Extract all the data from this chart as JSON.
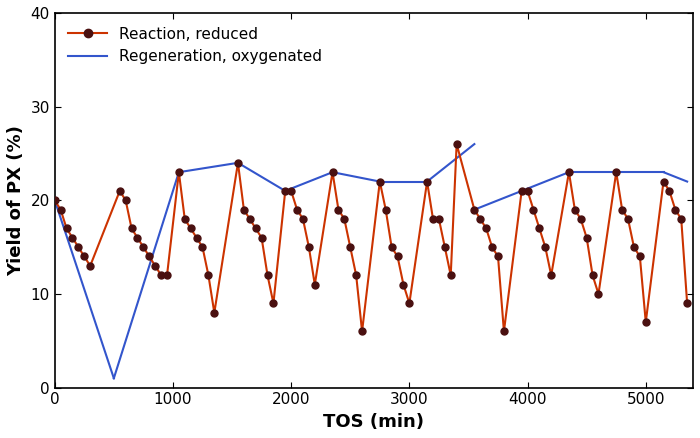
{
  "title": "",
  "xlabel": "TOS (min)",
  "ylabel": "Yield of PX (%)",
  "ylim": [
    0,
    40
  ],
  "xlim": [
    0,
    5400
  ],
  "xticks": [
    0,
    1000,
    2000,
    3000,
    4000,
    5000
  ],
  "yticks": [
    0,
    10,
    20,
    30,
    40
  ],
  "reaction_color": "#cc3300",
  "regeneration_color": "#3355cc",
  "marker_color": "#4a1010",
  "legend_reaction": "Reaction, reduced",
  "legend_regeneration": "Regeneration, oxygenated",
  "reaction_x": [
    0,
    50,
    100,
    150,
    200,
    250,
    300,
    550,
    600,
    650,
    700,
    750,
    800,
    850,
    900,
    950,
    1050,
    1100,
    1150,
    1200,
    1250,
    1300,
    1350,
    1550,
    1600,
    1650,
    1700,
    1750,
    1800,
    1850,
    1950,
    2000,
    2050,
    2100,
    2150,
    2200,
    2350,
    2400,
    2450,
    2500,
    2550,
    2600,
    2750,
    2800,
    2850,
    2900,
    2950,
    3000,
    3150,
    3200,
    3250,
    3300,
    3350,
    3400,
    3550,
    3600,
    3650,
    3700,
    3750,
    3800,
    3950,
    4000,
    4050,
    4100,
    4150,
    4200,
    4350,
    4400,
    4450,
    4500,
    4550,
    4600,
    4750,
    4800,
    4850,
    4900,
    4950,
    5000,
    5150,
    5200,
    5250,
    5300,
    5350
  ],
  "reaction_y": [
    20,
    19,
    17,
    16,
    15,
    14,
    13,
    21,
    20,
    17,
    16,
    15,
    14,
    13,
    12,
    12,
    23,
    18,
    17,
    16,
    15,
    12,
    8,
    24,
    19,
    18,
    17,
    16,
    12,
    9,
    21,
    21,
    19,
    18,
    15,
    11,
    23,
    19,
    18,
    15,
    12,
    6,
    22,
    19,
    15,
    14,
    11,
    9,
    22,
    18,
    18,
    15,
    12,
    26,
    19,
    18,
    17,
    15,
    14,
    6,
    21,
    21,
    19,
    17,
    15,
    12,
    23,
    19,
    18,
    16,
    12,
    10,
    23,
    19,
    18,
    15,
    14,
    7,
    22,
    21,
    19,
    18,
    9
  ],
  "regeneration_segments": [
    {
      "x": [
        0,
        500
      ],
      "y": [
        20,
        1
      ]
    },
    {
      "x": [
        500,
        1050
      ],
      "y": [
        1,
        23
      ]
    },
    {
      "x": [
        1050,
        1550
      ],
      "y": [
        23,
        24
      ]
    },
    {
      "x": [
        1550,
        1950
      ],
      "y": [
        24,
        21
      ]
    },
    {
      "x": [
        1950,
        2350
      ],
      "y": [
        21,
        23
      ]
    },
    {
      "x": [
        2350,
        2750
      ],
      "y": [
        23,
        22
      ]
    },
    {
      "x": [
        2750,
        3150
      ],
      "y": [
        22,
        22
      ]
    },
    {
      "x": [
        3150,
        3550
      ],
      "y": [
        22,
        26
      ]
    },
    {
      "x": [
        3550,
        3950
      ],
      "y": [
        19,
        21
      ]
    },
    {
      "x": [
        3950,
        4350
      ],
      "y": [
        21,
        23
      ]
    },
    {
      "x": [
        4350,
        4750
      ],
      "y": [
        23,
        23
      ]
    },
    {
      "x": [
        4750,
        5150
      ],
      "y": [
        23,
        23
      ]
    },
    {
      "x": [
        5150,
        5350
      ],
      "y": [
        23,
        22
      ]
    }
  ]
}
